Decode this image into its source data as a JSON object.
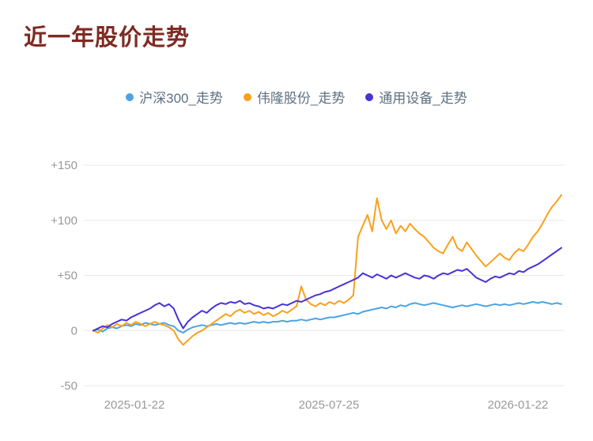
{
  "page": {
    "title": "近一年股价走势"
  },
  "colors": {
    "title": "#7e2a22",
    "axis_text": "#999999",
    "grid": "#e8e8e8",
    "legend_text": "#5e7082",
    "background": "#ffffff"
  },
  "chart_data": {
    "type": "line",
    "title": "近一年股价走势",
    "xlabel": "",
    "ylabel": "",
    "ylim": [
      -50,
      150
    ],
    "grid": true,
    "legend_position": "top",
    "x_tick_labels": [
      "2025-01-22",
      "2025-07-25",
      "2026-01-22"
    ],
    "y_ticks": [
      {
        "value": -50,
        "label": "-50"
      },
      {
        "value": 0,
        "label": "0"
      },
      {
        "value": 50,
        "label": "+50"
      },
      {
        "value": 100,
        "label": "+100"
      },
      {
        "value": 150,
        "label": "+150"
      }
    ],
    "series": [
      {
        "name": "沪深300_走势",
        "color": "#4ba3e3",
        "values": [
          0,
          1,
          -1,
          2,
          3,
          2,
          4,
          5,
          4,
          6,
          5,
          7,
          6,
          5,
          6,
          7,
          5,
          4,
          0,
          -2,
          1,
          3,
          4,
          5,
          4,
          5,
          6,
          5,
          6,
          7,
          6,
          7,
          6,
          7,
          8,
          7,
          8,
          7,
          8,
          8,
          9,
          8,
          9,
          9,
          10,
          9,
          10,
          11,
          10,
          11,
          12,
          12,
          13,
          14,
          15,
          16,
          15,
          17,
          18,
          19,
          20,
          21,
          20,
          22,
          21,
          23,
          22,
          24,
          25,
          24,
          23,
          24,
          25,
          24,
          23,
          22,
          21,
          22,
          23,
          22,
          23,
          24,
          23,
          22,
          23,
          24,
          23,
          24,
          23,
          24,
          25,
          24,
          25,
          26,
          25,
          26,
          25,
          24,
          25,
          24
        ]
      },
      {
        "name": "伟隆股份_走势",
        "color": "#f9a11b",
        "values": [
          0,
          -2,
          2,
          5,
          3,
          6,
          4,
          7,
          5,
          8,
          6,
          4,
          6,
          8,
          6,
          5,
          3,
          0,
          -8,
          -13,
          -9,
          -5,
          -2,
          0,
          3,
          6,
          9,
          12,
          15,
          13,
          17,
          19,
          16,
          18,
          15,
          17,
          14,
          16,
          13,
          15,
          18,
          16,
          19,
          22,
          40,
          28,
          24,
          22,
          25,
          23,
          26,
          24,
          27,
          25,
          28,
          32,
          85,
          95,
          105,
          90,
          120,
          100,
          92,
          100,
          88,
          95,
          90,
          97,
          92,
          88,
          85,
          80,
          75,
          72,
          70,
          78,
          85,
          75,
          72,
          80,
          74,
          68,
          63,
          58,
          62,
          66,
          70,
          66,
          64,
          70,
          74,
          72,
          78,
          85,
          90,
          97,
          105,
          112,
          117,
          123
        ]
      },
      {
        "name": "通用设备_走势",
        "color": "#4632d9",
        "values": [
          0,
          2,
          4,
          3,
          6,
          8,
          10,
          9,
          12,
          14,
          16,
          18,
          20,
          23,
          25,
          22,
          24,
          20,
          10,
          2,
          8,
          12,
          15,
          18,
          16,
          20,
          23,
          25,
          24,
          26,
          25,
          27,
          24,
          25,
          23,
          22,
          20,
          21,
          20,
          22,
          24,
          23,
          25,
          27,
          26,
          28,
          30,
          32,
          33,
          35,
          36,
          38,
          40,
          42,
          44,
          46,
          48,
          52,
          50,
          48,
          51,
          49,
          47,
          50,
          48,
          50,
          52,
          50,
          48,
          47,
          50,
          49,
          47,
          50,
          52,
          51,
          53,
          55,
          54,
          56,
          52,
          48,
          46,
          44,
          47,
          49,
          48,
          50,
          52,
          51,
          54,
          53,
          56,
          58,
          60,
          63,
          66,
          69,
          72,
          75
        ]
      }
    ]
  }
}
